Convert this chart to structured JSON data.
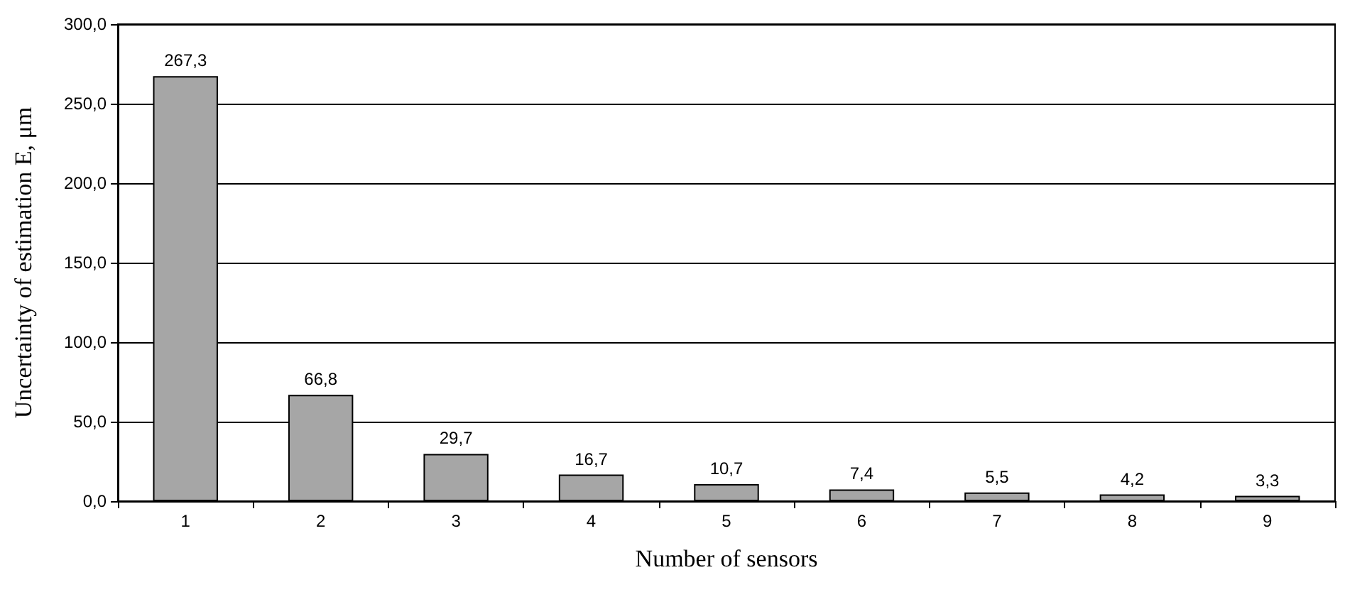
{
  "chart_data": {
    "type": "bar",
    "xlabel": "Number of sensors",
    "ylabel": "Uncertainty of estimation E, μm",
    "categories": [
      "1",
      "2",
      "3",
      "4",
      "5",
      "6",
      "7",
      "8",
      "9"
    ],
    "values": [
      267.3,
      66.8,
      29.7,
      16.7,
      10.7,
      7.4,
      5.5,
      4.2,
      3.3
    ],
    "value_labels": [
      "267,3",
      "66,8",
      "29,7",
      "16,7",
      "10,7",
      "7,4",
      "5,5",
      "4,2",
      "3,3"
    ],
    "color": "#a6a6a6",
    "ylim": [
      0,
      300
    ],
    "yticks": [
      {
        "value": 0,
        "label": "0,0"
      },
      {
        "value": 50,
        "label": "50,0"
      },
      {
        "value": 100,
        "label": "100,0"
      },
      {
        "value": 150,
        "label": "150,0"
      },
      {
        "value": 200,
        "label": "200,0"
      },
      {
        "value": 250,
        "label": "250,0"
      },
      {
        "value": 300,
        "label": "300,0"
      }
    ],
    "grid": "y"
  }
}
